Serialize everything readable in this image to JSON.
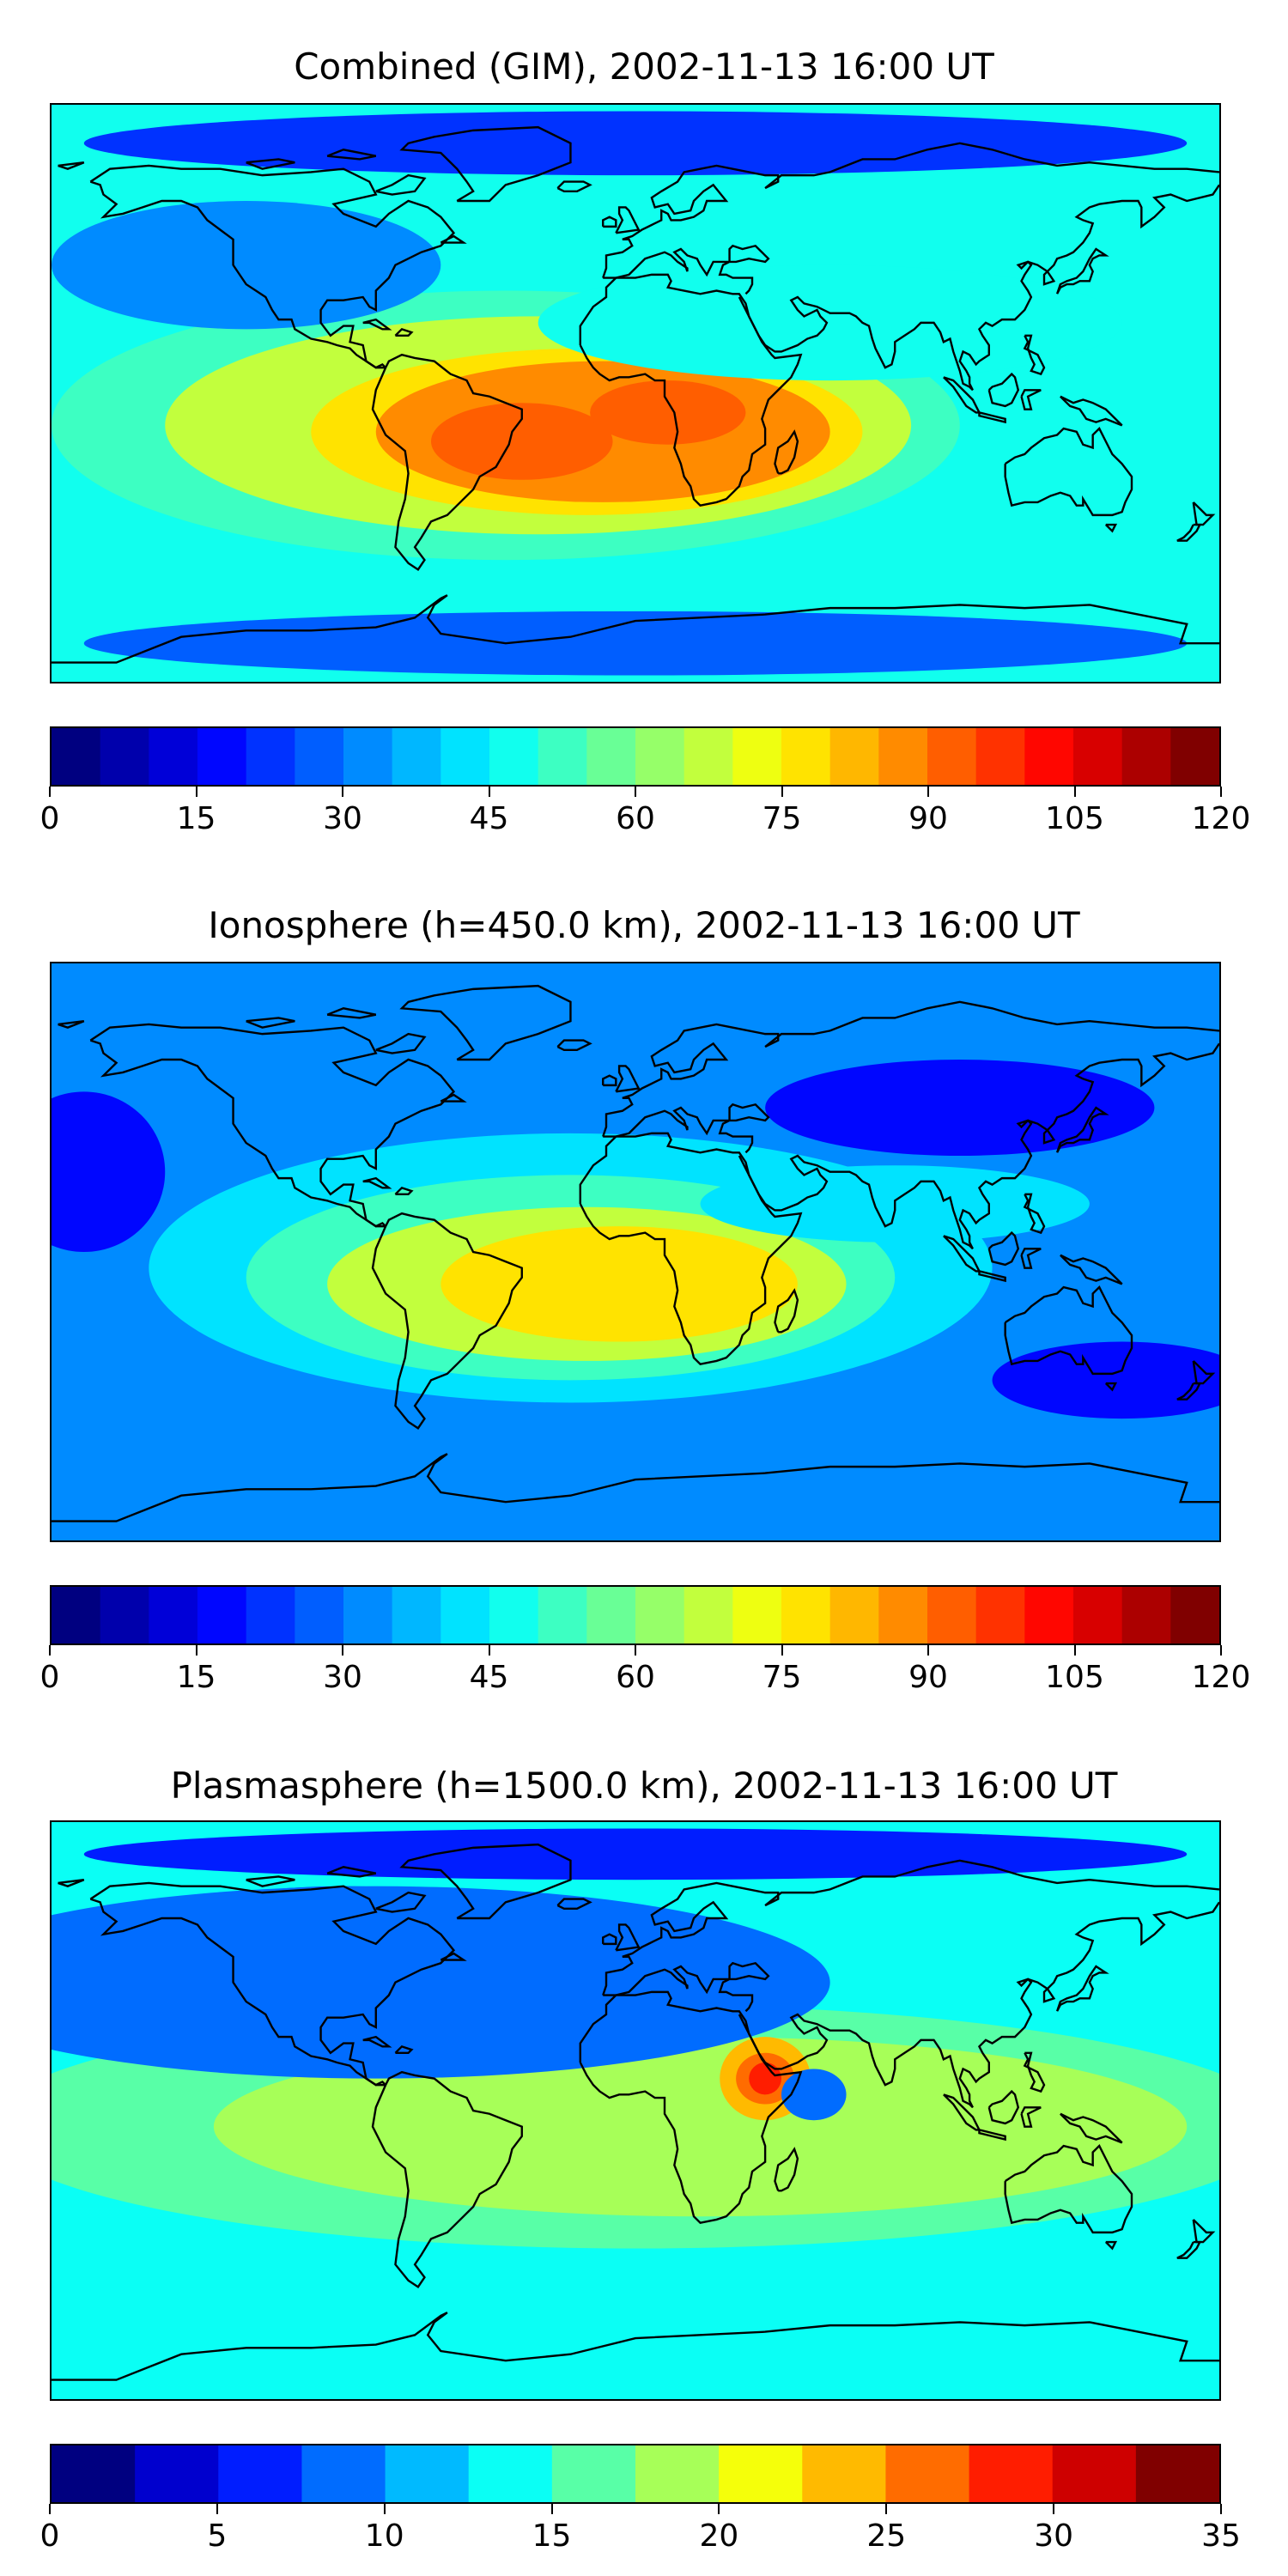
{
  "panels": [
    {
      "title": "Combined (GIM), 2002-11-13 16:00 UT",
      "colorbar": {
        "min": 0,
        "max": 120,
        "levels": 24,
        "ticks": [
          "0",
          "15",
          "30",
          "45",
          "60",
          "75",
          "90",
          "105",
          "120"
        ]
      },
      "field": {
        "background_level": 9,
        "blobs": [
          {
            "lon": -40,
            "lat": -10,
            "rx": 140,
            "ry": 42,
            "level": 10
          },
          {
            "lon": -30,
            "lat": -10,
            "rx": 115,
            "ry": 34,
            "level": 13
          },
          {
            "lon": -15,
            "lat": -12,
            "rx": 85,
            "ry": 26,
            "level": 15
          },
          {
            "lon": -10,
            "lat": -12,
            "rx": 70,
            "ry": 22,
            "level": 17
          },
          {
            "lon": -35,
            "lat": -15,
            "rx": 28,
            "ry": 12,
            "level": 18
          },
          {
            "lon": 10,
            "lat": -6,
            "rx": 24,
            "ry": 10,
            "level": 18
          },
          {
            "lon": 60,
            "lat": 22,
            "rx": 90,
            "ry": 18,
            "level": 9
          },
          {
            "lon": -120,
            "lat": 40,
            "rx": 60,
            "ry": 20,
            "level": 6
          },
          {
            "lon": 0,
            "lat": 78,
            "rx": 170,
            "ry": 10,
            "level": 4
          },
          {
            "lon": 0,
            "lat": -78,
            "rx": 170,
            "ry": 10,
            "level": 5
          }
        ]
      }
    },
    {
      "title": "Ionosphere  (h=450.0 km), 2002-11-13 16:00 UT",
      "colorbar": {
        "min": 0,
        "max": 120,
        "levels": 24,
        "ticks": [
          "0",
          "15",
          "30",
          "45",
          "60",
          "75",
          "90",
          "105",
          "120"
        ]
      },
      "field": {
        "background_level": 6,
        "blobs": [
          {
            "lon": -20,
            "lat": -5,
            "rx": 130,
            "ry": 42,
            "level": 8
          },
          {
            "lon": -20,
            "lat": -8,
            "rx": 100,
            "ry": 32,
            "level": 10
          },
          {
            "lon": -15,
            "lat": -10,
            "rx": 80,
            "ry": 24,
            "level": 13
          },
          {
            "lon": -5,
            "lat": -10,
            "rx": 55,
            "ry": 18,
            "level": 15
          },
          {
            "lon": 80,
            "lat": 15,
            "rx": 60,
            "ry": 12,
            "level": 8
          },
          {
            "lon": 100,
            "lat": 45,
            "rx": 60,
            "ry": 15,
            "level": 3
          },
          {
            "lon": -170,
            "lat": 25,
            "rx": 25,
            "ry": 25,
            "level": 3
          },
          {
            "lon": 150,
            "lat": -40,
            "rx": 40,
            "ry": 12,
            "level": 3
          }
        ]
      }
    },
    {
      "title": "Plasmasphere (h=1500.0 km), 2002-11-13 16:00 UT",
      "colorbar": {
        "min": 0,
        "max": 35,
        "levels": 14,
        "ticks": [
          "0",
          "5",
          "10",
          "15",
          "20",
          "25",
          "30",
          "35"
        ]
      },
      "field": {
        "background_level": 5,
        "blobs": [
          {
            "lon": 0,
            "lat": -5,
            "rx": 200,
            "ry": 38,
            "level": 6
          },
          {
            "lon": 20,
            "lat": -5,
            "rx": 150,
            "ry": 28,
            "level": 7
          },
          {
            "lon": 40,
            "lat": 10,
            "rx": 14,
            "ry": 13,
            "level": 9
          },
          {
            "lon": 40,
            "lat": 10,
            "rx": 9,
            "ry": 8,
            "level": 10
          },
          {
            "lon": 40,
            "lat": 10,
            "rx": 5,
            "ry": 5,
            "level": 11
          },
          {
            "lon": 55,
            "lat": 5,
            "rx": 10,
            "ry": 8,
            "level": 3
          },
          {
            "lon": -90,
            "lat": 50,
            "rx": 70,
            "ry": 20,
            "level": 2
          },
          {
            "lon": -80,
            "lat": 40,
            "rx": 140,
            "ry": 30,
            "level": 3
          },
          {
            "lon": 0,
            "lat": 80,
            "rx": 170,
            "ry": 8,
            "level": 2
          }
        ]
      }
    }
  ]
}
